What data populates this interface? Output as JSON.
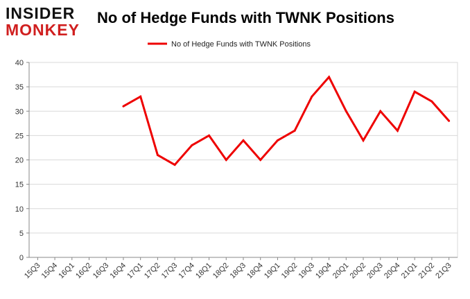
{
  "logo": {
    "line1": "INSIDER",
    "line2": "MONKEY"
  },
  "colors": {
    "series": "#ee0000",
    "grid": "#d9d9d9",
    "axis": "#888888",
    "logo_red": "#d01f1f"
  },
  "chart_data": {
    "type": "line",
    "title": "No of Hedge Funds with TWNK Positions",
    "xlabel": "",
    "ylabel": "",
    "ylim": [
      0,
      40
    ],
    "yticks": [
      0,
      5,
      10,
      15,
      20,
      25,
      30,
      35,
      40
    ],
    "grid": true,
    "legend_position": "top-center",
    "categories": [
      "15Q3",
      "15Q4",
      "16Q1",
      "16Q2",
      "16Q3",
      "16Q4",
      "17Q1",
      "17Q2",
      "17Q3",
      "17Q4",
      "18Q1",
      "18Q2",
      "18Q3",
      "18Q4",
      "19Q1",
      "19Q2",
      "19Q3",
      "19Q4",
      "20Q1",
      "20Q2",
      "20Q3",
      "20Q4",
      "21Q1",
      "21Q2",
      "21Q3"
    ],
    "series": [
      {
        "name": "No of Hedge Funds with TWNK Positions",
        "values": [
          null,
          null,
          null,
          null,
          null,
          31,
          33,
          21,
          19,
          23,
          25,
          20,
          24,
          20,
          24,
          26,
          33,
          37,
          30,
          24,
          30,
          26,
          34,
          32,
          28
        ]
      }
    ]
  }
}
